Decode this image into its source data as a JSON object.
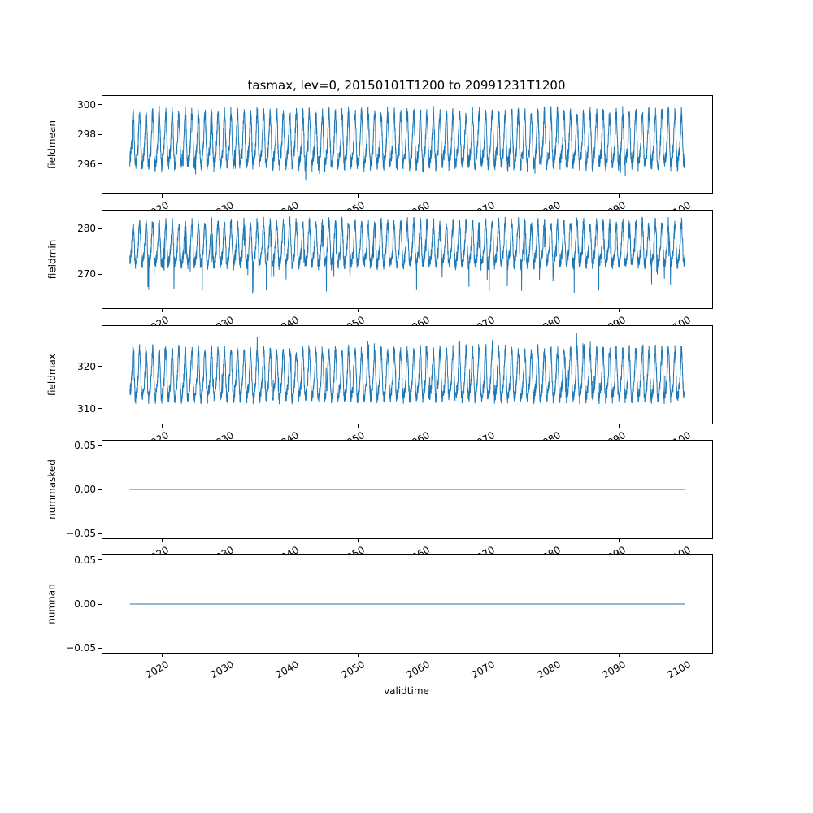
{
  "figure": {
    "title": "tasmax, lev=0, 20150101T1200 to 20991231T1200",
    "xlabel": "validtime",
    "line_color": "#1f77b4",
    "background": "#ffffff",
    "spine_color": "#000000"
  },
  "x_axis": {
    "label": "validtime",
    "xlim": [
      2010.8,
      2104.2
    ],
    "data_range": [
      2015.0,
      2100.0
    ],
    "tick_values": [
      2020,
      2030,
      2040,
      2050,
      2060,
      2070,
      2080,
      2090,
      2100
    ],
    "tick_labels": [
      "2020",
      "2030",
      "2040",
      "2050",
      "2060",
      "2070",
      "2080",
      "2090",
      "2100"
    ],
    "tick_rotation_deg": 30
  },
  "chart_data": [
    {
      "type": "line",
      "series": "fieldmean",
      "ylabel": "fieldmean",
      "ylim": [
        294.0,
        300.6
      ],
      "ytick_values": [
        296,
        298,
        300
      ],
      "ytick_labels": [
        "296",
        "298",
        "300"
      ],
      "signal": {
        "kind": "seasonal",
        "base": 297.4,
        "annual_amp": 1.6,
        "semiannual_amp": 0.5,
        "noise": 0.5,
        "spike_prob": 0.012,
        "spike_mag": 1.1,
        "spike_dir": -1,
        "approx_min": 294.5,
        "approx_max": 300.0
      }
    },
    {
      "type": "line",
      "series": "fieldmin",
      "ylabel": "fieldmin",
      "ylim": [
        262.5,
        284.0
      ],
      "ytick_values": [
        270,
        280
      ],
      "ytick_labels": [
        "270",
        "280"
      ],
      "signal": {
        "kind": "seasonal",
        "base": 276.0,
        "annual_amp": 4.2,
        "semiannual_amp": 1.2,
        "noise": 1.4,
        "spike_prob": 0.02,
        "spike_mag": 7.0,
        "spike_dir": -1,
        "approx_min": 263.0,
        "approx_max": 282.5
      }
    },
    {
      "type": "line",
      "series": "fieldmax",
      "ylabel": "fieldmax",
      "ylim": [
        306.5,
        329.5
      ],
      "ytick_values": [
        310,
        320
      ],
      "ytick_labels": [
        "310",
        "320"
      ],
      "signal": {
        "kind": "seasonal",
        "base": 317.2,
        "annual_amp": 5.2,
        "semiannual_amp": 1.5,
        "noise": 1.5,
        "spike_prob": 0.02,
        "spike_mag": 4.5,
        "spike_dir": 1,
        "approx_min": 308.5,
        "approx_max": 328.5
      }
    },
    {
      "type": "line",
      "series": "nummasked",
      "ylabel": "nummasked",
      "ylim": [
        -0.0555,
        0.0555
      ],
      "ytick_values": [
        -0.05,
        0.0,
        0.05
      ],
      "ytick_labels": [
        "−0.05",
        "0.00",
        "0.05"
      ],
      "signal": {
        "kind": "constant",
        "value": 0.0
      }
    },
    {
      "type": "line",
      "series": "numnan",
      "ylabel": "numnan",
      "ylim": [
        -0.0555,
        0.0555
      ],
      "ytick_values": [
        -0.05,
        0.0,
        0.05
      ],
      "ytick_labels": [
        "−0.05",
        "0.00",
        "0.05"
      ],
      "signal": {
        "kind": "constant",
        "value": 0.0
      }
    }
  ]
}
